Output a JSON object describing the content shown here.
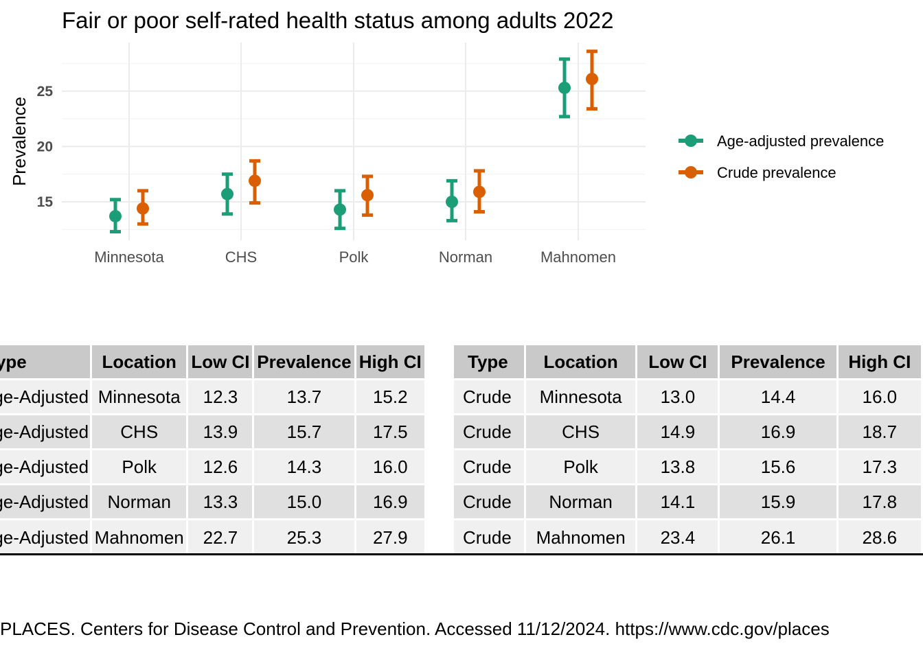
{
  "chart_data": {
    "type": "scatter",
    "subtype": "point-range",
    "title": "Fair or poor self-rated health status among adults 2022",
    "xlabel": "",
    "ylabel": "Prevalence",
    "categories": [
      "Minnesota",
      "CHS",
      "Polk",
      "Norman",
      "Mahnomen"
    ],
    "yticks": [
      15,
      20,
      25
    ],
    "ylim": [
      11.5,
      29.5
    ],
    "grid": true,
    "legend_position": "right",
    "series": [
      {
        "name": "Age-adjusted prevalence",
        "color": "#1b9e77",
        "values": [
          13.7,
          15.7,
          14.3,
          15.0,
          25.3
        ],
        "low": [
          12.3,
          13.9,
          12.6,
          13.3,
          22.7
        ],
        "high": [
          15.2,
          17.5,
          16.0,
          16.9,
          27.9
        ]
      },
      {
        "name": "Crude prevalence",
        "color": "#d95f02",
        "values": [
          14.4,
          16.9,
          15.6,
          15.9,
          26.1
        ],
        "low": [
          13.0,
          14.9,
          13.8,
          14.1,
          23.4
        ],
        "high": [
          16.0,
          18.7,
          17.3,
          17.8,
          28.6
        ]
      }
    ]
  },
  "tables": {
    "left": {
      "headers": [
        "Type",
        "Location",
        "Low CI",
        "Prevalence",
        "High CI"
      ],
      "rows": [
        [
          "Age-Adjusted",
          "Minnesota",
          "12.3",
          "13.7",
          "15.2"
        ],
        [
          "Age-Adjusted",
          "CHS",
          "13.9",
          "15.7",
          "17.5"
        ],
        [
          "Age-Adjusted",
          "Polk",
          "12.6",
          "14.3",
          "16.0"
        ],
        [
          "Age-Adjusted",
          "Norman",
          "13.3",
          "15.0",
          "16.9"
        ],
        [
          "Age-Adjusted",
          "Mahnomen",
          "22.7",
          "25.3",
          "27.9"
        ]
      ]
    },
    "right": {
      "headers": [
        "Type",
        "Location",
        "Low CI",
        "Prevalence",
        "High CI"
      ],
      "rows": [
        [
          "Crude",
          "Minnesota",
          "13.0",
          "14.4",
          "16.0"
        ],
        [
          "Crude",
          "CHS",
          "14.9",
          "16.9",
          "18.7"
        ],
        [
          "Crude",
          "Polk",
          "13.8",
          "15.6",
          "17.3"
        ],
        [
          "Crude",
          "Norman",
          "14.1",
          "15.9",
          "17.8"
        ],
        [
          "Crude",
          "Mahnomen",
          "23.4",
          "26.1",
          "28.6"
        ]
      ]
    }
  },
  "source_note": "PLACES. Centers for Disease Control and Prevention. Accessed 11/12/2024. https://www.cdc.gov/places"
}
